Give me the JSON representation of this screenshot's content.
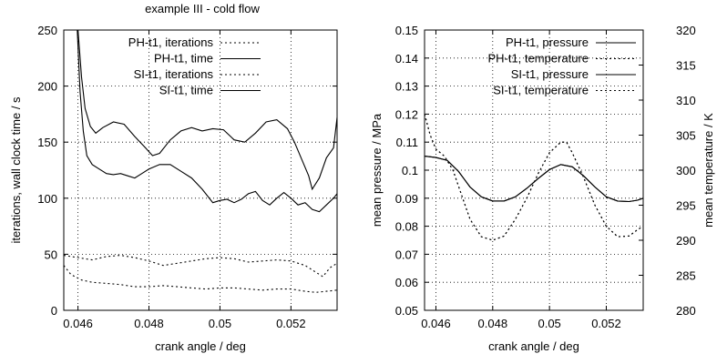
{
  "figure_title": "example III - cold flow",
  "chart_data": [
    {
      "type": "line",
      "title": "example III - cold flow",
      "xlabel": "crank angle / deg",
      "ylabel": "iterations, wall clock time / s",
      "xlim": [
        0.0456,
        0.0533
      ],
      "ylim": [
        0,
        250
      ],
      "x_ticks": [
        0.046,
        0.048,
        0.05,
        0.052
      ],
      "x_tick_labels": [
        "0.046",
        "0.048",
        "0.05",
        "0.052"
      ],
      "y_ticks": [
        0,
        50,
        100,
        150,
        200,
        250
      ],
      "y_tick_labels": [
        "0",
        "50",
        "100",
        "150",
        "200",
        "250"
      ],
      "grid": true,
      "legend_position": "top-right",
      "series": [
        {
          "name": "PH-t1, iterations",
          "dash": "dotted",
          "points": [
            [
              0.0456,
              49
            ],
            [
              0.046,
              47
            ],
            [
              0.0464,
              45
            ],
            [
              0.0468,
              48
            ],
            [
              0.0472,
              49
            ],
            [
              0.0476,
              47
            ],
            [
              0.048,
              44
            ],
            [
              0.0484,
              40
            ],
            [
              0.0488,
              42
            ],
            [
              0.0492,
              44
            ],
            [
              0.0496,
              46
            ],
            [
              0.05,
              47
            ],
            [
              0.0504,
              46
            ],
            [
              0.0508,
              43
            ],
            [
              0.0512,
              44
            ],
            [
              0.0516,
              45
            ],
            [
              0.052,
              44
            ],
            [
              0.0524,
              40
            ],
            [
              0.0527,
              34
            ],
            [
              0.0529,
              30
            ],
            [
              0.0531,
              38
            ],
            [
              0.0533,
              42
            ]
          ]
        },
        {
          "name": "PH-t1, time",
          "dash": "solid",
          "points": [
            [
              0.046,
              250
            ],
            [
              0.0461,
              208
            ],
            [
              0.0462,
              180
            ],
            [
              0.04635,
              164
            ],
            [
              0.0465,
              158
            ],
            [
              0.0467,
              163
            ],
            [
              0.047,
              168
            ],
            [
              0.0473,
              166
            ],
            [
              0.0476,
              155
            ],
            [
              0.0479,
              145
            ],
            [
              0.0481,
              138
            ],
            [
              0.0483,
              140
            ],
            [
              0.0486,
              152
            ],
            [
              0.0489,
              160
            ],
            [
              0.0492,
              163
            ],
            [
              0.0495,
              160
            ],
            [
              0.0498,
              162
            ],
            [
              0.0501,
              161
            ],
            [
              0.0504,
              152
            ],
            [
              0.0507,
              150
            ],
            [
              0.051,
              158
            ],
            [
              0.0513,
              168
            ],
            [
              0.0516,
              170
            ],
            [
              0.0519,
              162
            ],
            [
              0.0521,
              150
            ],
            [
              0.0523,
              135
            ],
            [
              0.0525,
              120
            ],
            [
              0.0526,
              108
            ],
            [
              0.0528,
              118
            ],
            [
              0.053,
              136
            ],
            [
              0.0532,
              145
            ],
            [
              0.0533,
              172
            ]
          ]
        },
        {
          "name": "SI-t1, iterations",
          "dash": "dotted",
          "points": [
            [
              0.0456,
              40
            ],
            [
              0.0458,
              32
            ],
            [
              0.0461,
              27
            ],
            [
              0.0464,
              25
            ],
            [
              0.0468,
              24
            ],
            [
              0.0472,
              23
            ],
            [
              0.0476,
              21
            ],
            [
              0.048,
              21
            ],
            [
              0.0484,
              22
            ],
            [
              0.0488,
              21
            ],
            [
              0.0492,
              20
            ],
            [
              0.0496,
              19
            ],
            [
              0.05,
              20
            ],
            [
              0.0504,
              20
            ],
            [
              0.0508,
              19
            ],
            [
              0.0512,
              18
            ],
            [
              0.0516,
              19
            ],
            [
              0.052,
              19
            ],
            [
              0.0524,
              17
            ],
            [
              0.0527,
              16
            ],
            [
              0.053,
              17
            ],
            [
              0.0533,
              18
            ]
          ]
        },
        {
          "name": "SI-t1, time",
          "dash": "solid",
          "points": [
            [
              0.04598,
              250
            ],
            [
              0.04606,
              195
            ],
            [
              0.04615,
              160
            ],
            [
              0.04625,
              138
            ],
            [
              0.0464,
              130
            ],
            [
              0.0466,
              126
            ],
            [
              0.0468,
              122
            ],
            [
              0.047,
              121
            ],
            [
              0.0472,
              122
            ],
            [
              0.0474,
              120
            ],
            [
              0.0476,
              118
            ],
            [
              0.0478,
              122
            ],
            [
              0.048,
              126
            ],
            [
              0.0483,
              130
            ],
            [
              0.0486,
              130
            ],
            [
              0.0489,
              124
            ],
            [
              0.0492,
              118
            ],
            [
              0.0495,
              108
            ],
            [
              0.0498,
              96
            ],
            [
              0.05,
              98
            ],
            [
              0.0502,
              99
            ],
            [
              0.0504,
              96
            ],
            [
              0.0506,
              99
            ],
            [
              0.0508,
              104
            ],
            [
              0.051,
              106
            ],
            [
              0.0512,
              98
            ],
            [
              0.0514,
              94
            ],
            [
              0.0516,
              100
            ],
            [
              0.0518,
              105
            ],
            [
              0.052,
              100
            ],
            [
              0.0522,
              94
            ],
            [
              0.0524,
              96
            ],
            [
              0.0526,
              90
            ],
            [
              0.0528,
              88
            ],
            [
              0.053,
              94
            ],
            [
              0.0532,
              100
            ],
            [
              0.0533,
              104
            ]
          ]
        }
      ]
    },
    {
      "type": "line",
      "xlabel": "crank angle / deg",
      "ylabel": "mean pressure / MPa",
      "y2label": "mean temperature / K",
      "xlim": [
        0.0456,
        0.0533
      ],
      "ylim": [
        0.05,
        0.15
      ],
      "y2lim": [
        280,
        320
      ],
      "x_ticks": [
        0.046,
        0.048,
        0.05,
        0.052
      ],
      "x_tick_labels": [
        "0.046",
        "0.048",
        "0.05",
        "0.052"
      ],
      "y_ticks": [
        0.05,
        0.06,
        0.07,
        0.08,
        0.09,
        0.1,
        0.11,
        0.12,
        0.13,
        0.14,
        0.15
      ],
      "y_tick_labels": [
        "0.05",
        "0.06",
        "0.07",
        "0.08",
        "0.09",
        "0.1",
        "0.11",
        "0.12",
        "0.13",
        "0.14",
        "0.15"
      ],
      "y2_ticks": [
        280,
        285,
        290,
        295,
        300,
        305,
        310,
        315,
        320
      ],
      "y2_tick_labels": [
        "280",
        "285",
        "290",
        "295",
        "300",
        "305",
        "310",
        "315",
        "320"
      ],
      "grid": true,
      "legend_position": "top-right",
      "series": [
        {
          "name": "PH-t1, pressure",
          "dash": "solid",
          "axis": "left",
          "points": [
            [
              0.0456,
              0.105
            ],
            [
              0.046,
              0.1045
            ],
            [
              0.0464,
              0.1035
            ],
            [
              0.0468,
              0.0995
            ],
            [
              0.0472,
              0.094
            ],
            [
              0.0476,
              0.0905
            ],
            [
              0.048,
              0.089
            ],
            [
              0.0484,
              0.089
            ],
            [
              0.0488,
              0.0905
            ],
            [
              0.0492,
              0.0935
            ],
            [
              0.0496,
              0.097
            ],
            [
              0.05,
              0.1002
            ],
            [
              0.0504,
              0.102
            ],
            [
              0.0508,
              0.1012
            ],
            [
              0.0512,
              0.098
            ],
            [
              0.0516,
              0.094
            ],
            [
              0.052,
              0.0905
            ],
            [
              0.0524,
              0.089
            ],
            [
              0.0528,
              0.0888
            ],
            [
              0.0531,
              0.0893
            ],
            [
              0.0533,
              0.09
            ]
          ]
        },
        {
          "name": "PH-t1, temperature",
          "dash": "dotted",
          "axis": "right",
          "points": [
            [
              0.0456,
              308
            ],
            [
              0.0458,
              305
            ],
            [
              0.046,
              303
            ],
            [
              0.0463,
              302
            ],
            [
              0.0466,
              300
            ],
            [
              0.0469,
              296.5
            ],
            [
              0.0472,
              293
            ],
            [
              0.0476,
              290.5
            ],
            [
              0.048,
              290
            ],
            [
              0.0484,
              290.6
            ],
            [
              0.0488,
              293
            ],
            [
              0.0492,
              296
            ],
            [
              0.0496,
              299.5
            ],
            [
              0.05,
              302.5
            ],
            [
              0.0504,
              304
            ],
            [
              0.0506,
              304
            ],
            [
              0.0508,
              302.5
            ],
            [
              0.0512,
              299
            ],
            [
              0.0516,
              295
            ],
            [
              0.052,
              292
            ],
            [
              0.0524,
              290.5
            ],
            [
              0.0528,
              290.6
            ],
            [
              0.0531,
              291.5
            ],
            [
              0.0533,
              292
            ]
          ]
        },
        {
          "name": "SI-t1, pressure",
          "dash": "solid",
          "axis": "left",
          "points": [
            [
              0.0456,
              0.105
            ],
            [
              0.046,
              0.1045
            ],
            [
              0.0464,
              0.1035
            ],
            [
              0.0468,
              0.0995
            ],
            [
              0.0472,
              0.094
            ],
            [
              0.0476,
              0.0905
            ],
            [
              0.048,
              0.089
            ],
            [
              0.0484,
              0.089
            ],
            [
              0.0488,
              0.0905
            ],
            [
              0.0492,
              0.0935
            ],
            [
              0.0496,
              0.097
            ],
            [
              0.05,
              0.1002
            ],
            [
              0.0504,
              0.102
            ],
            [
              0.0508,
              0.1012
            ],
            [
              0.0512,
              0.098
            ],
            [
              0.0516,
              0.094
            ],
            [
              0.052,
              0.0905
            ],
            [
              0.0524,
              0.089
            ],
            [
              0.0528,
              0.0888
            ],
            [
              0.0531,
              0.0893
            ],
            [
              0.0533,
              0.09
            ]
          ]
        },
        {
          "name": "SI-t1, temperature",
          "dash": "dotted",
          "axis": "right",
          "points": [
            [
              0.0456,
              308
            ],
            [
              0.0458,
              305
            ],
            [
              0.046,
              303
            ],
            [
              0.0463,
              302
            ],
            [
              0.0466,
              300
            ],
            [
              0.0469,
              296.5
            ],
            [
              0.0472,
              293
            ],
            [
              0.0476,
              290.5
            ],
            [
              0.048,
              290
            ],
            [
              0.0484,
              290.6
            ],
            [
              0.0488,
              293
            ],
            [
              0.0492,
              296
            ],
            [
              0.0496,
              299.5
            ],
            [
              0.05,
              302.5
            ],
            [
              0.0504,
              304
            ],
            [
              0.0506,
              304
            ],
            [
              0.0508,
              302.5
            ],
            [
              0.0512,
              299
            ],
            [
              0.0516,
              295
            ],
            [
              0.052,
              292
            ],
            [
              0.0524,
              290.5
            ],
            [
              0.0528,
              290.6
            ],
            [
              0.0531,
              291.5
            ],
            [
              0.0533,
              292
            ]
          ]
        }
      ]
    }
  ]
}
